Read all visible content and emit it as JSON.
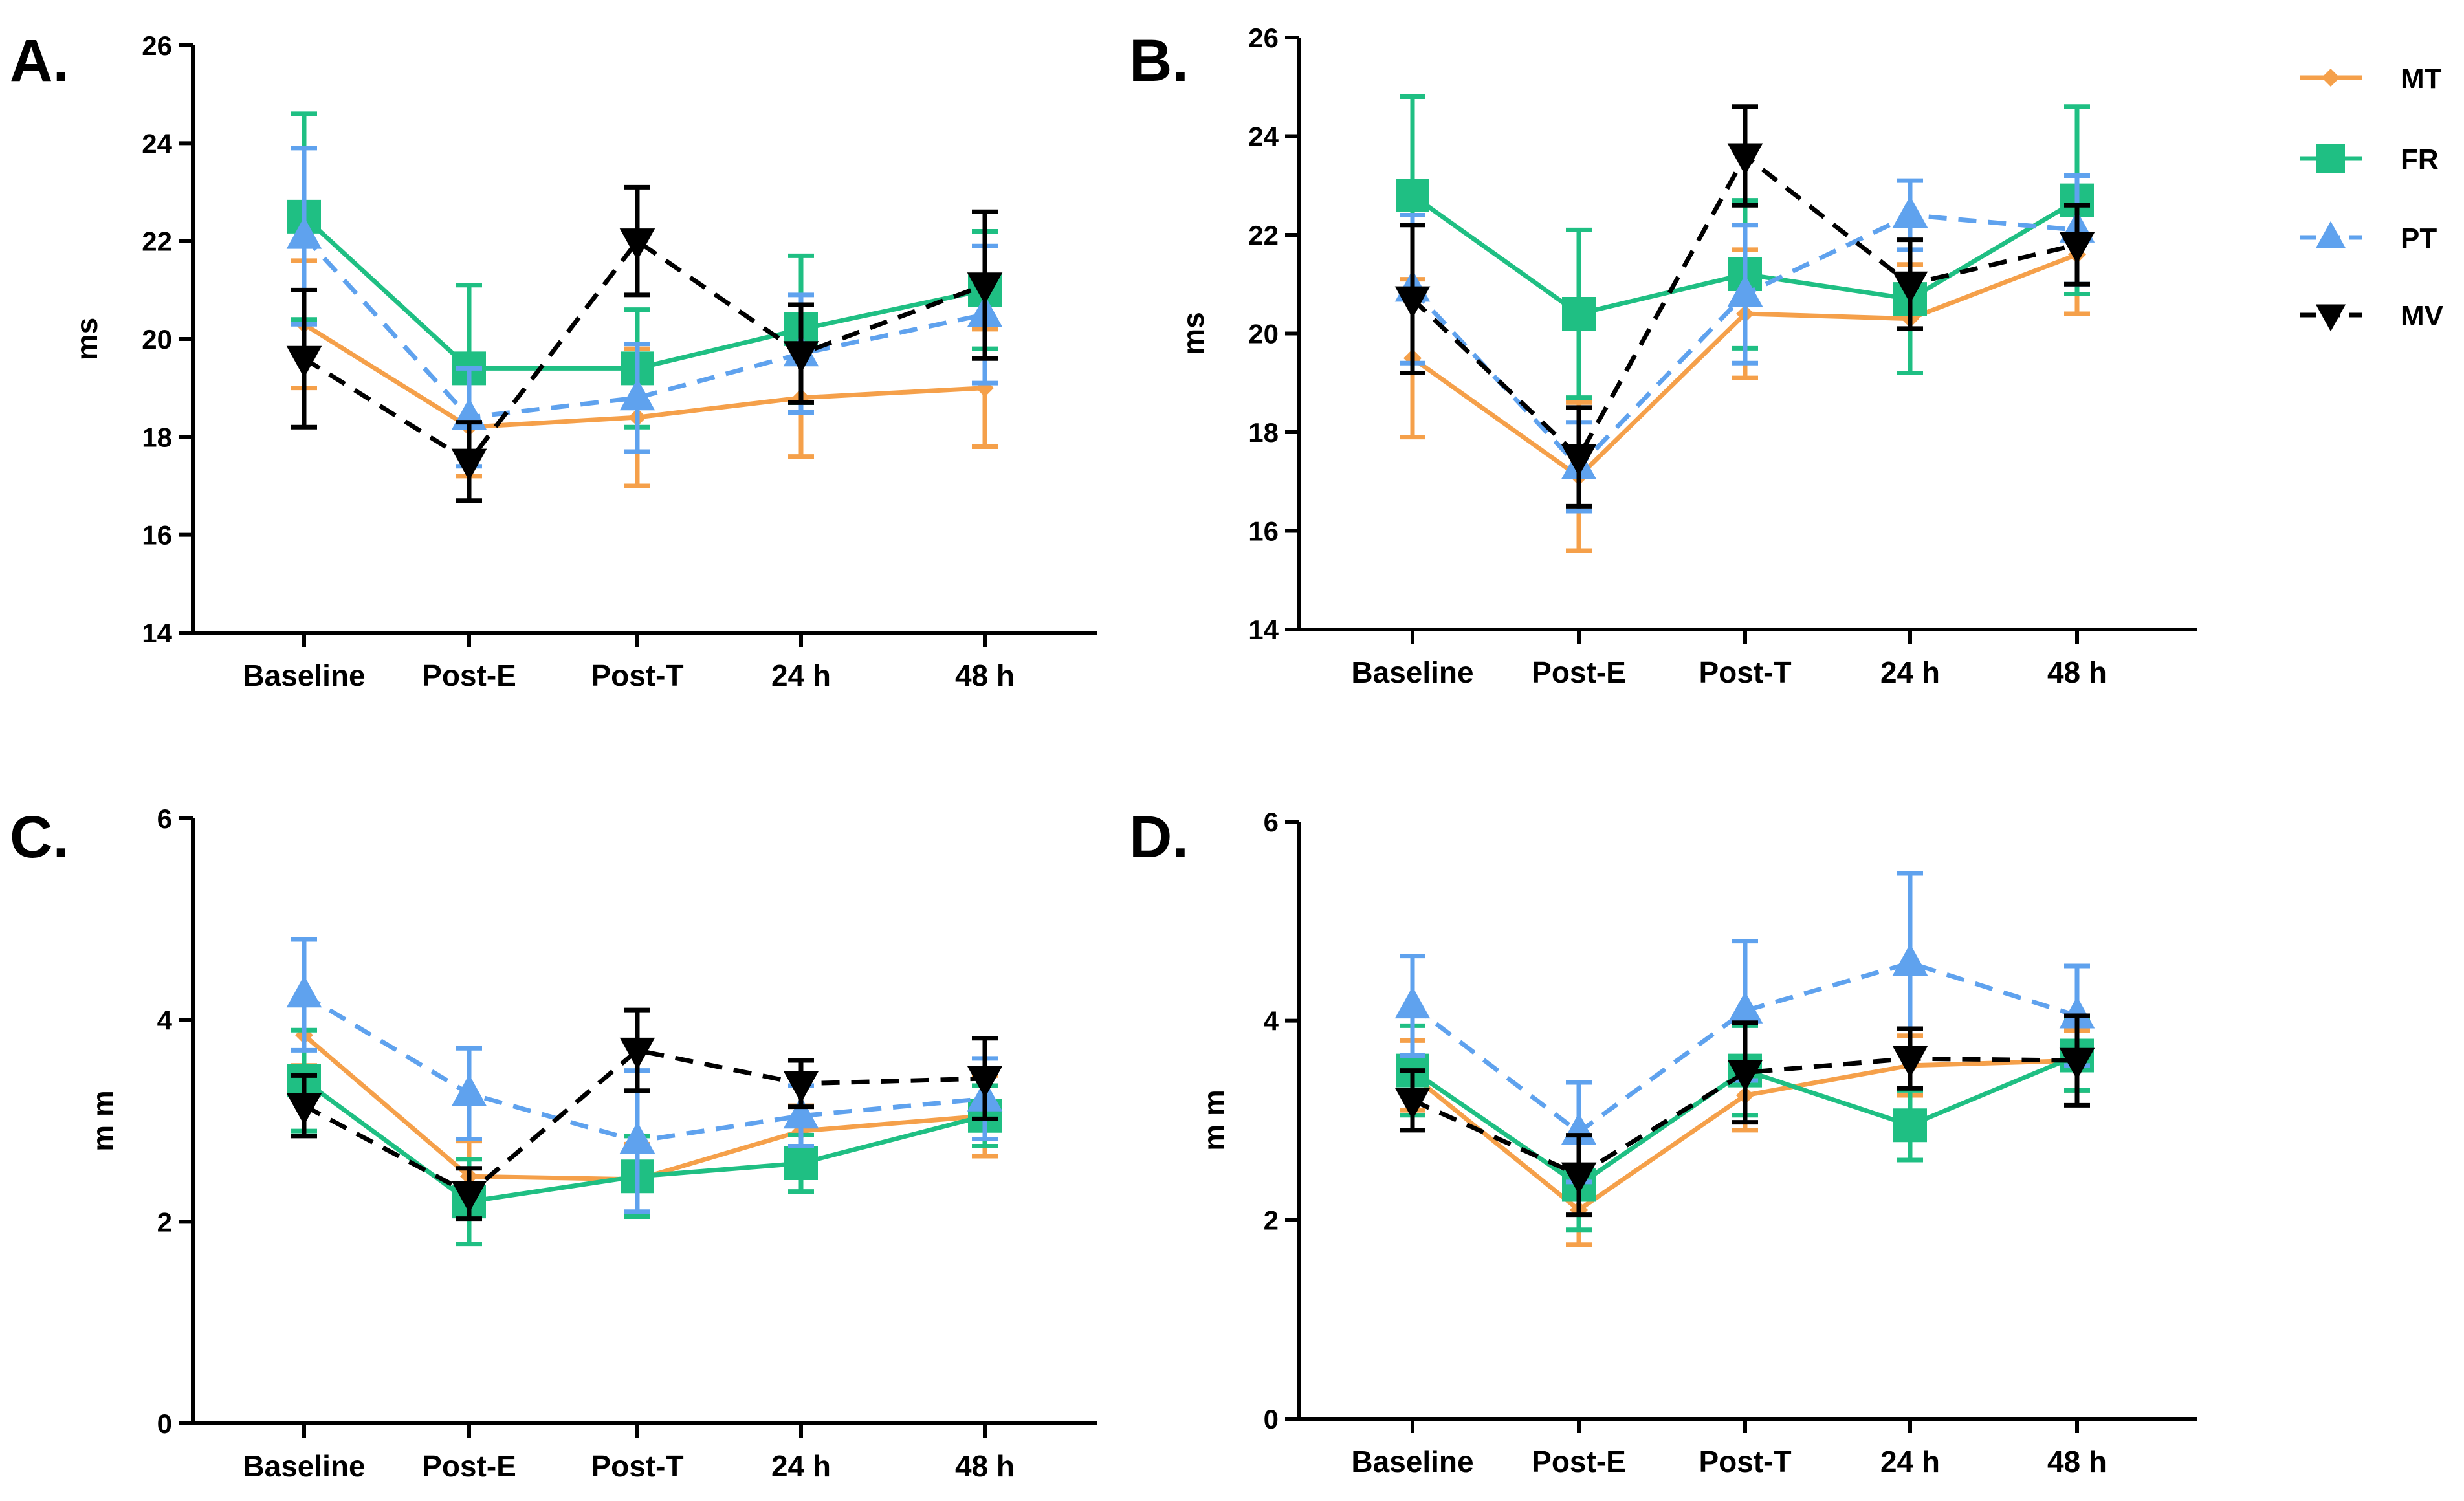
{
  "legend": [
    {
      "name": "MT",
      "color": "#f5a04a",
      "marker": "diamond",
      "dash": "solid"
    },
    {
      "name": "FR",
      "color": "#1fbf83",
      "marker": "square",
      "dash": "solid"
    },
    {
      "name": "PT",
      "color": "#5fa2ee",
      "marker": "triangle-up",
      "dash": "dashed"
    },
    {
      "name": "MV",
      "color": "#000000",
      "marker": "triangle-down",
      "dash": "dashed"
    }
  ],
  "chart_data": [
    {
      "type": "line",
      "panel": "A.",
      "ylabel": "ms",
      "ylim": [
        14,
        26
      ],
      "yticks": [
        "14",
        "16",
        "18",
        "20",
        "22",
        "24",
        "26"
      ],
      "categories": [
        "Baseline",
        "Post-E",
        "Post-T",
        "24 h",
        "48 h"
      ],
      "series": [
        {
          "name": "MT",
          "values": [
            20.3,
            18.2,
            18.4,
            18.8,
            19.0
          ],
          "errors": [
            1.3,
            1.0,
            1.4,
            1.2,
            1.2
          ]
        },
        {
          "name": "FR",
          "values": [
            22.5,
            19.4,
            19.4,
            20.2,
            21.0
          ],
          "errors": [
            2.1,
            1.7,
            1.2,
            1.5,
            1.2
          ]
        },
        {
          "name": "PT",
          "values": [
            22.1,
            18.4,
            18.8,
            19.7,
            20.5
          ],
          "errors": [
            1.8,
            1.0,
            1.1,
            1.2,
            1.4
          ]
        },
        {
          "name": "MV",
          "values": [
            19.6,
            17.5,
            22.0,
            19.7,
            21.1
          ],
          "errors": [
            1.4,
            0.8,
            1.1,
            1.0,
            1.5
          ]
        }
      ]
    },
    {
      "type": "line",
      "panel": "B.",
      "ylabel": "ms",
      "ylim": [
        14,
        26
      ],
      "yticks": [
        "14",
        "16",
        "18",
        "20",
        "22",
        "24",
        "26"
      ],
      "categories": [
        "Baseline",
        "Post-E",
        "Post-T",
        "24 h",
        "48 h"
      ],
      "series": [
        {
          "name": "MT",
          "values": [
            19.5,
            17.1,
            20.4,
            20.3,
            21.6
          ],
          "errors": [
            1.6,
            1.5,
            1.3,
            1.1,
            1.2
          ]
        },
        {
          "name": "FR",
          "values": [
            22.8,
            20.4,
            21.2,
            20.7,
            22.7
          ],
          "errors": [
            2.0,
            1.7,
            1.5,
            1.5,
            1.9
          ]
        },
        {
          "name": "PT",
          "values": [
            20.9,
            17.3,
            20.8,
            22.4,
            22.1
          ],
          "errors": [
            1.5,
            0.9,
            1.4,
            0.7,
            1.1
          ]
        },
        {
          "name": "MV",
          "values": [
            20.7,
            17.5,
            23.6,
            21.0,
            21.8
          ],
          "errors": [
            1.5,
            1.0,
            1.0,
            0.9,
            0.8
          ]
        }
      ]
    },
    {
      "type": "line",
      "panel": "C.",
      "ylabel": "m m",
      "ylim": [
        0,
        6
      ],
      "yticks": [
        "0",
        "2",
        "4",
        "6"
      ],
      "categories": [
        "Baseline",
        "Post-E",
        "Post-T",
        "24 h",
        "48 h"
      ],
      "series": [
        {
          "name": "MT",
          "values": [
            3.85,
            2.45,
            2.42,
            2.9,
            3.05
          ],
          "errors": [
            0.3,
            0.35,
            0.35,
            0.25,
            0.4
          ]
        },
        {
          "name": "FR",
          "values": [
            3.4,
            2.2,
            2.45,
            2.58,
            3.05
          ],
          "errors": [
            0.5,
            0.42,
            0.4,
            0.28,
            0.3
          ]
        },
        {
          "name": "PT",
          "values": [
            4.25,
            3.27,
            2.8,
            3.05,
            3.22
          ],
          "errors": [
            0.55,
            0.45,
            0.7,
            0.3,
            0.4
          ]
        },
        {
          "name": "MV",
          "values": [
            3.15,
            2.28,
            3.7,
            3.37,
            3.42
          ],
          "errors": [
            0.3,
            0.25,
            0.4,
            0.23,
            0.4
          ]
        }
      ]
    },
    {
      "type": "line",
      "panel": "D.",
      "ylabel": "m m",
      "ylim": [
        0,
        6
      ],
      "yticks": [
        "0",
        "2",
        "4",
        "6"
      ],
      "categories": [
        "Baseline",
        "Post-E",
        "Post-T",
        "24 h",
        "48 h"
      ],
      "series": [
        {
          "name": "MT",
          "values": [
            3.45,
            2.1,
            3.25,
            3.55,
            3.6
          ],
          "errors": [
            0.35,
            0.35,
            0.35,
            0.3,
            0.3
          ]
        },
        {
          "name": "FR",
          "values": [
            3.5,
            2.35,
            3.5,
            2.95,
            3.65
          ],
          "errors": [
            0.45,
            0.45,
            0.45,
            0.35,
            0.35
          ]
        },
        {
          "name": "PT",
          "values": [
            4.15,
            2.88,
            4.1,
            4.58,
            4.05
          ],
          "errors": [
            0.5,
            0.5,
            0.7,
            0.9,
            0.5
          ]
        },
        {
          "name": "MV",
          "values": [
            3.2,
            2.45,
            3.48,
            3.62,
            3.6
          ],
          "errors": [
            0.3,
            0.4,
            0.5,
            0.3,
            0.45
          ]
        }
      ]
    }
  ]
}
